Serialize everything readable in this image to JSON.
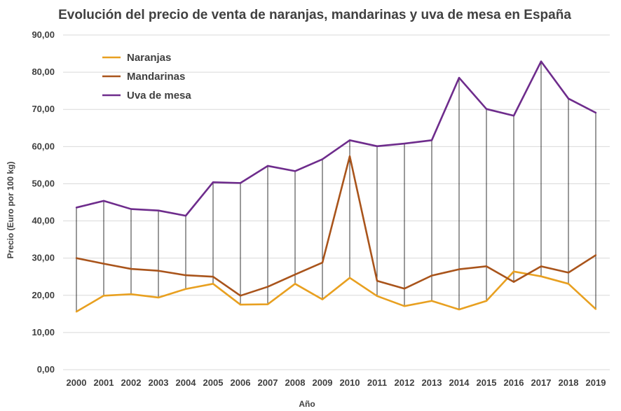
{
  "chart_data": {
    "type": "line",
    "title": "Evolución del precio de venta de naranjas, mandarinas y uva de mesa en España",
    "xlabel": "Año",
    "ylabel": "Precio (Euro por 100 kg)",
    "ylim": [
      0,
      90
    ],
    "y_ticks": [
      "0,00",
      "10,00",
      "20,00",
      "30,00",
      "40,00",
      "50,00",
      "60,00",
      "70,00",
      "80,00",
      "90,00"
    ],
    "grid": true,
    "drop_lines": true,
    "legend_position": "top-left",
    "categories": [
      "2000",
      "2001",
      "2002",
      "2003",
      "2004",
      "2005",
      "2006",
      "2007",
      "2008",
      "2009",
      "2010",
      "2011",
      "2012",
      "2013",
      "2014",
      "2015",
      "2016",
      "2017",
      "2018",
      "2019"
    ],
    "series": [
      {
        "name": "Naranjas",
        "color": "#E8A020",
        "values": [
          15.6,
          19.9,
          20.3,
          19.4,
          21.7,
          23.1,
          17.5,
          17.6,
          23.1,
          18.9,
          24.7,
          19.8,
          17.1,
          18.5,
          16.2,
          18.5,
          26.4,
          25.1,
          23.1,
          16.3
        ]
      },
      {
        "name": "Mandarinas",
        "color": "#A9541B",
        "values": [
          30.0,
          28.5,
          27.1,
          26.6,
          25.4,
          25.0,
          19.9,
          22.3,
          25.6,
          28.8,
          57.4,
          23.9,
          21.8,
          25.3,
          27.0,
          27.8,
          23.6,
          27.8,
          26.1,
          30.8
        ]
      },
      {
        "name": "Uva de mesa",
        "color": "#6E2C8C",
        "values": [
          43.6,
          45.4,
          43.2,
          42.8,
          41.4,
          50.4,
          50.2,
          54.8,
          53.4,
          56.6,
          61.7,
          60.1,
          60.8,
          61.7,
          78.5,
          70.1,
          68.3,
          82.9,
          72.9,
          69.1
        ]
      }
    ]
  }
}
